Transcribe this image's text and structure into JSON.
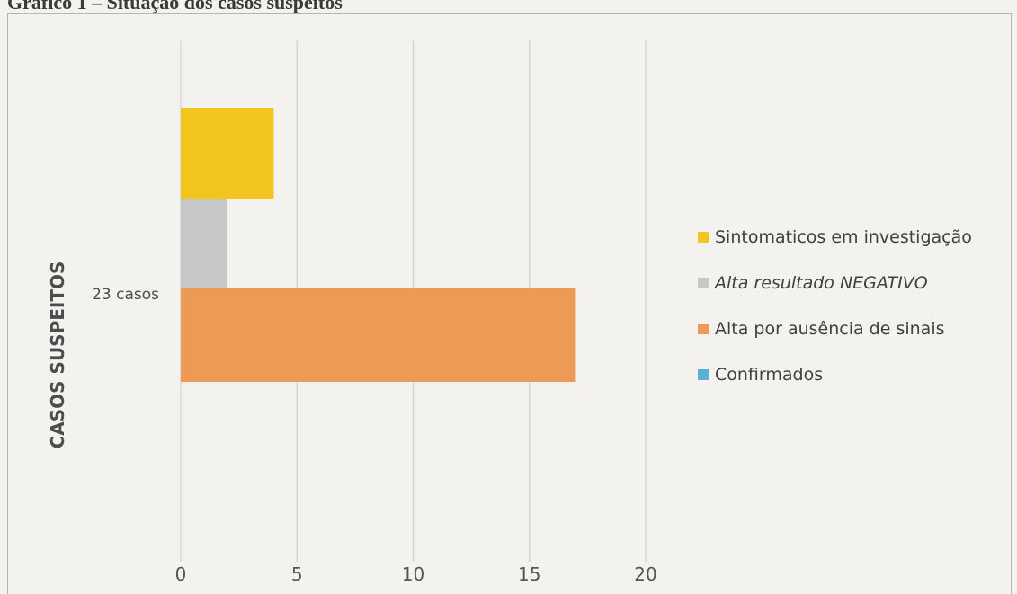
{
  "title": "Grafico 1 – Situação dos casos suspeitos",
  "chart_data": {
    "type": "bar",
    "orientation": "horizontal",
    "title": "Grafico 1 – Situação dos casos suspeitos",
    "ylabel": "CASOS SUSPEITOS",
    "categories": [
      "23 casos"
    ],
    "xlim": [
      0,
      20
    ],
    "xticks": [
      0,
      5,
      10,
      15,
      20
    ],
    "grid": true,
    "legend_position": "right",
    "series": [
      {
        "name": "Sintomaticos em investigação",
        "values": [
          4
        ],
        "color": "#f2c51f"
      },
      {
        "name": "Alta resultado NEGATIVO",
        "values": [
          2
        ],
        "color": "#c8c8c8"
      },
      {
        "name": "Alta por ausência de sinais",
        "values": [
          17
        ],
        "color": "#ee9a57"
      },
      {
        "name": "Confirmados",
        "values": [
          0
        ],
        "color": "#5ab0d6"
      }
    ]
  },
  "legend": {
    "items": [
      {
        "parts": [
          {
            "text": "Sintomaticos em investigação",
            "italic": false
          }
        ]
      },
      {
        "parts": [
          {
            "text": "Alta ",
            "italic": true
          },
          {
            "text": "resultado",
            "italic": true
          },
          {
            "text": " NEGATIVO",
            "italic": true
          }
        ]
      },
      {
        "parts": [
          {
            "text": "Alta por ausência de sinais",
            "italic": false
          }
        ]
      },
      {
        "parts": [
          {
            "text": "Confirmados",
            "italic": false
          }
        ]
      }
    ]
  }
}
